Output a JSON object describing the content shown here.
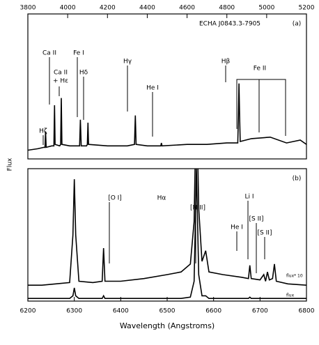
{
  "chart_data": [
    {
      "type": "line",
      "title": "ECHA J0843.3-7905",
      "panel": "(a)",
      "ylabel": "Flux",
      "xlim": [
        3800,
        5200
      ],
      "xticks": [
        3800,
        4000,
        4200,
        4400,
        4600,
        4800,
        5000,
        5200
      ],
      "ylim": [
        0,
        1
      ],
      "x": [
        3800,
        3850,
        3880,
        3886,
        3889,
        3892,
        3920,
        3931,
        3934,
        3937,
        3960,
        3965,
        3968,
        3971,
        4010,
        4060,
        4064,
        4068,
        4095,
        4099,
        4102,
        4105,
        4200,
        4300,
        4336,
        4340,
        4344,
        4400,
        4468,
        4471,
        4474,
        4600,
        4700,
        4800,
        4855,
        4858,
        4861,
        4864,
        4867,
        4924,
        5018,
        5100,
        5169,
        5200
      ],
      "series": [
        {
          "color": "#000000",
          "values": [
            0.06,
            0.07,
            0.08,
            0.08,
            0.19,
            0.08,
            0.09,
            0.09,
            0.37,
            0.1,
            0.09,
            0.1,
            0.42,
            0.1,
            0.09,
            0.09,
            0.27,
            0.09,
            0.09,
            0.1,
            0.25,
            0.1,
            0.09,
            0.09,
            0.1,
            0.3,
            0.1,
            0.09,
            0.09,
            0.11,
            0.09,
            0.1,
            0.1,
            0.11,
            0.11,
            0.3,
            0.52,
            0.3,
            0.12,
            0.14,
            0.15,
            0.11,
            0.13,
            0.1
          ]
        }
      ],
      "annotations": [
        "Hζ",
        "Ca II",
        "Ca II",
        "+ Hε",
        "Fe I",
        "Hδ",
        "Hγ",
        "He I",
        "Hβ",
        "Fe II"
      ]
    },
    {
      "type": "line",
      "panel": "(b)",
      "xlabel": "Wavelength (Angstroms)",
      "xlim": [
        6200,
        6800
      ],
      "xticks": [
        6200,
        6300,
        6400,
        6500,
        6600,
        6700,
        6800
      ],
      "ylim": [
        0,
        1
      ],
      "x": [
        6200,
        6230,
        6260,
        6290,
        6297,
        6300,
        6303,
        6310,
        6340,
        6360,
        6363,
        6366,
        6400,
        6450,
        6500,
        6530,
        6550,
        6558,
        6563,
        6568,
        6575,
        6583,
        6590,
        6620,
        6660,
        6675,
        6678,
        6681,
        6700,
        6708,
        6712,
        6716,
        6720,
        6727,
        6731,
        6735,
        6760,
        6800
      ],
      "series": [
        {
          "name": "flux* 10",
          "color": "#000000",
          "values": [
            0.12,
            0.12,
            0.13,
            0.14,
            0.5,
            0.92,
            0.5,
            0.15,
            0.14,
            0.15,
            0.4,
            0.15,
            0.15,
            0.17,
            0.2,
            0.22,
            0.28,
            0.6,
            1.6,
            0.7,
            0.3,
            0.38,
            0.22,
            0.2,
            0.18,
            0.17,
            0.27,
            0.17,
            0.16,
            0.2,
            0.15,
            0.22,
            0.16,
            0.17,
            0.28,
            0.15,
            0.13,
            0.12
          ]
        },
        {
          "name": "flux",
          "color": "#000000",
          "values": [
            0.02,
            0.02,
            0.02,
            0.02,
            0.04,
            0.1,
            0.04,
            0.02,
            0.02,
            0.02,
            0.04,
            0.02,
            0.02,
            0.02,
            0.02,
            0.02,
            0.03,
            0.15,
            1.0,
            0.2,
            0.04,
            0.04,
            0.02,
            0.02,
            0.02,
            0.02,
            0.03,
            0.02,
            0.02,
            0.02,
            0.02,
            0.02,
            0.02,
            0.02,
            0.02,
            0.02,
            0.02,
            0.02
          ]
        }
      ],
      "annotations": [
        "[O I]",
        "Hα",
        "[N II]",
        "He I",
        "Li I",
        "[S II]",
        "[S II]"
      ]
    }
  ]
}
